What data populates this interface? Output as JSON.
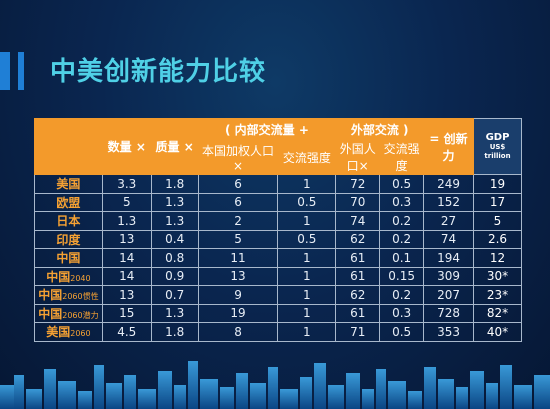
{
  "slide": {
    "title": "中美创新能力比较"
  },
  "table": {
    "header": {
      "quantity": "数量 ×",
      "quality": "质量 ×",
      "paren_open": "(",
      "internal_exchange": "内部交流量 +",
      "external_exchange": "外部交流 )",
      "equals": "= 创新力",
      "sub_domestic_per_capita": "本国加权人口×",
      "sub_exchange_intensity_1": "交流强度",
      "sub_foreign_per_capita": "外国人口×",
      "sub_exchange_intensity_2": "交流强度",
      "gdp_title": "GDP",
      "gdp_unit": "US$",
      "gdp_scale": "trillion"
    },
    "rows": [
      {
        "label": "美国",
        "suffix": "",
        "quantity": "3.3",
        "quality": "1.8",
        "domestic": "6",
        "intensity1": "1",
        "foreign": "72",
        "intensity2": "0.5",
        "innovation": "249",
        "gdp": "19"
      },
      {
        "label": "欧盟",
        "suffix": "",
        "quantity": "5",
        "quality": "1.3",
        "domestic": "6",
        "intensity1": "0.5",
        "foreign": "70",
        "intensity2": "0.3",
        "innovation": "152",
        "gdp": "17"
      },
      {
        "label": "日本",
        "suffix": "",
        "quantity": "1.3",
        "quality": "1.3",
        "domestic": "2",
        "intensity1": "1",
        "foreign": "74",
        "intensity2": "0.2",
        "innovation": "27",
        "gdp": "5"
      },
      {
        "label": "印度",
        "suffix": "",
        "quantity": "13",
        "quality": "0.4",
        "domestic": "5",
        "intensity1": "0.5",
        "foreign": "62",
        "intensity2": "0.2",
        "innovation": "74",
        "gdp": "2.6"
      },
      {
        "label": "中国",
        "suffix": "",
        "quantity": "14",
        "quality": "0.8",
        "domestic": "11",
        "intensity1": "1",
        "foreign": "61",
        "intensity2": "0.1",
        "innovation": "194",
        "gdp": "12"
      },
      {
        "label": "中国",
        "suffix": "2040",
        "quantity": "14",
        "quality": "0.9",
        "domestic": "13",
        "intensity1": "1",
        "foreign": "61",
        "intensity2": "0.15",
        "innovation": "309",
        "gdp": "30*"
      },
      {
        "label": "中国",
        "suffix": "2060惯性",
        "quantity": "13",
        "quality": "0.7",
        "domestic": "9",
        "intensity1": "1",
        "foreign": "62",
        "intensity2": "0.2",
        "innovation": "207",
        "gdp": "23*"
      },
      {
        "label": "中国",
        "suffix": "2060潜力",
        "quantity": "15",
        "quality": "1.3",
        "domestic": "19",
        "intensity1": "1",
        "foreign": "61",
        "intensity2": "0.3",
        "innovation": "728",
        "gdp": "82*"
      },
      {
        "label": "美国",
        "suffix": "2060",
        "quantity": "4.5",
        "quality": "1.8",
        "domestic": "8",
        "intensity1": "1",
        "foreign": "71",
        "intensity2": "0.5",
        "innovation": "353",
        "gdp": "40*"
      }
    ]
  },
  "colors": {
    "background": "#0a2650",
    "title": "#4fd0e6",
    "header_bg": "#f39a2b",
    "row_label": "#f5a133",
    "accent": "#1f7fd6"
  }
}
